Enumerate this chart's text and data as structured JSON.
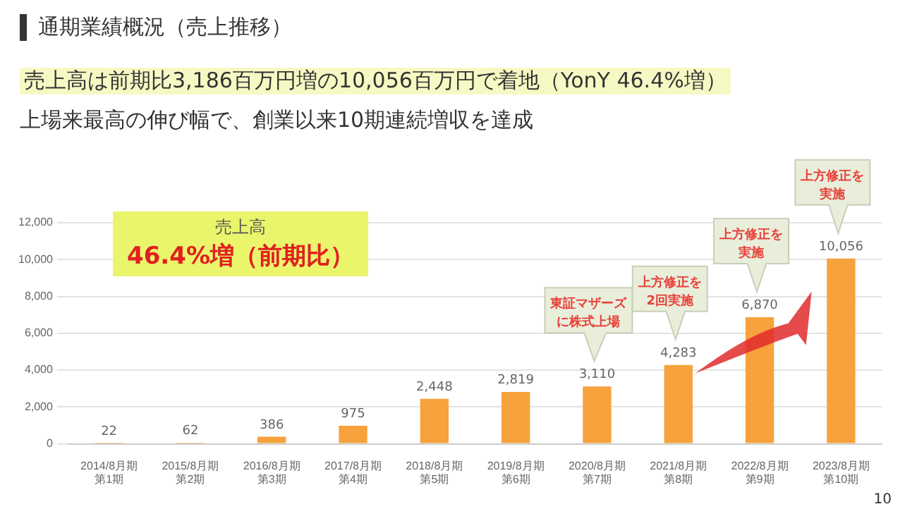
{
  "chart_data": {
    "type": "bar",
    "title": "通期業績概況（売上推移）",
    "subtitle": "売上高は前期比3,186百万円増の10,056百万円で着地（YonY 46.4%増）",
    "categories": [
      "2014/8月期第1期",
      "2015/8月期第2期",
      "2016/8月期第3期",
      "2017/8月期第4期",
      "2018/8月期第5期",
      "2019/8月期第6期",
      "2020/8月期第7期",
      "2021/8月期第8期",
      "2022/8月期第9期",
      "2023/8月期第10期"
    ],
    "values": [
      22,
      62,
      386,
      975,
      2448,
      2819,
      3110,
      4283,
      6870,
      10056
    ],
    "color": "#f7a23c",
    "ylim": [
      0,
      12000
    ],
    "yticks": [
      {
        "value": 0,
        "label": "0"
      },
      {
        "value": 2000,
        "label": "2,000"
      },
      {
        "value": 4000,
        "label": "4,000"
      },
      {
        "value": 6000,
        "label": "6,000"
      },
      {
        "value": 8000,
        "label": "8,000"
      },
      {
        "value": 10000,
        "label": "10,000"
      },
      {
        "value": 12000,
        "label": "12,000"
      }
    ],
    "value_labels": [
      "22",
      "62",
      "386",
      "975",
      "2,448",
      "2,819",
      "3,110",
      "4,283",
      "6,870",
      "10,056"
    ],
    "grid": "y",
    "legend": false,
    "annotations": [
      "上場来最高の伸び幅で、創業以来10期連続増収を達成",
      "売上高\n46.4%増（前期比）",
      "10",
      "東証マザーズに株式上場",
      "上方修正を2回実施",
      "上方修正を実施",
      "上方修正を実施"
    ]
  }
}
